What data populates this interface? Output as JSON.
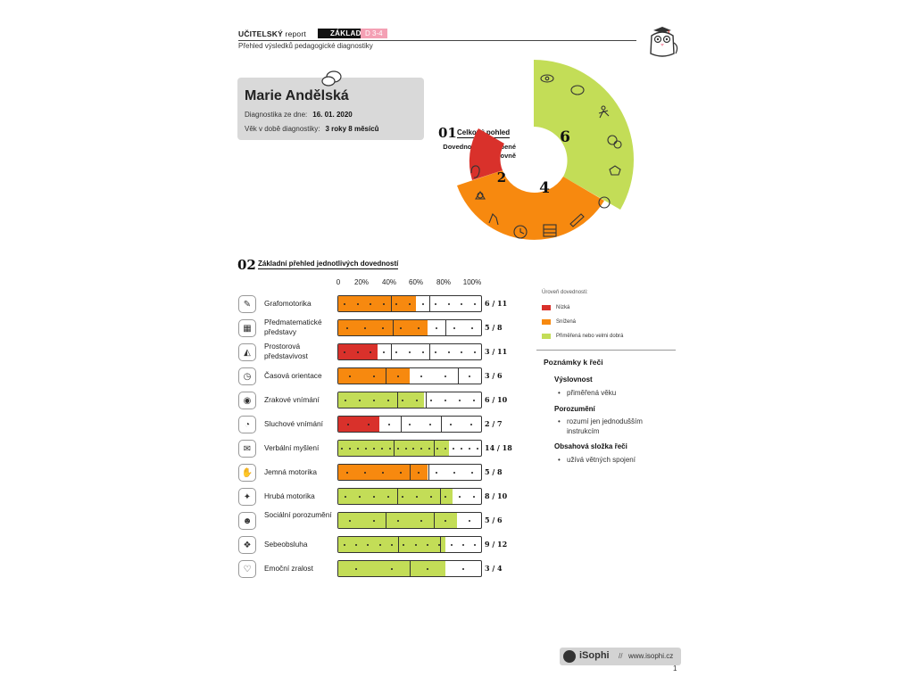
{
  "header": {
    "title_strong": "UČITELSKÝ",
    "title_light": "report",
    "badge": "ZÁKLADNÍ",
    "age_badge": "D 3-4",
    "subtitle": "Přehled výsledků pedagogické diagnostiky"
  },
  "profile": {
    "name": "Marie Andělská",
    "date_label": "Diagnostika ze dne:",
    "date_value": "16. 01. 2020",
    "age_label": "Věk v době diagnostiky:",
    "age_value": "3 roky 8 měsíců"
  },
  "section1": {
    "number": "01",
    "title": "Celkový pohled",
    "desc_line1": "Dovednosti seskupené",
    "desc_line2": "dle úrovně",
    "groups": [
      {
        "level": "low",
        "count": "2",
        "color": "#d9312b"
      },
      {
        "level": "reduced",
        "count": "4",
        "color": "#f7890f"
      },
      {
        "level": "good",
        "count": "6",
        "color": "#c3dd57"
      }
    ]
  },
  "section2": {
    "number": "02",
    "title": "Základní přehled jednotlivých dovedností",
    "scale": [
      "0",
      "20%",
      "40%",
      "60%",
      "80%",
      "100%"
    ]
  },
  "colors": {
    "low": "#d9312b",
    "reduced": "#f7890f",
    "good": "#c3dd57"
  },
  "skills": [
    {
      "label": "Grafomotorika",
      "score": "6 / 11",
      "achieved": 6,
      "total": 11,
      "level": "reduced",
      "icon": "pencil-icon",
      "seps": [
        0.37,
        0.64
      ]
    },
    {
      "label": "Předmatematické představy",
      "score": "5 / 8",
      "achieved": 5,
      "total": 8,
      "level": "reduced",
      "icon": "abacus-icon",
      "seps": [
        0.38,
        0.75
      ]
    },
    {
      "label": "Prostorová představivost",
      "score": "3 / 11",
      "achieved": 3,
      "total": 11,
      "level": "low",
      "icon": "shapes-icon",
      "seps": [
        0.37,
        0.64
      ]
    },
    {
      "label": "Časová orientace",
      "score": "3 / 6",
      "achieved": 3,
      "total": 6,
      "level": "reduced",
      "icon": "clock-icon",
      "seps": [
        0.33,
        0.84
      ]
    },
    {
      "label": "Zrakové vnímání",
      "score": "6 / 10",
      "achieved": 6,
      "total": 10,
      "level": "good",
      "icon": "eye-icon",
      "seps": [
        0.41,
        0.61
      ]
    },
    {
      "label": "Sluchové vnímání",
      "score": "2 / 7",
      "achieved": 2,
      "total": 7,
      "level": "low",
      "icon": "ear-icon",
      "seps": [
        0.44,
        0.72
      ]
    },
    {
      "label": "Verbální myšlení",
      "score": "14 / 18",
      "achieved": 14,
      "total": 18,
      "level": "good",
      "icon": "speech-icon",
      "seps": [
        0.39,
        0.67
      ]
    },
    {
      "label": "Jemná motorika",
      "score": "5 / 8",
      "achieved": 5,
      "total": 8,
      "level": "reduced",
      "icon": "hand-icon",
      "seps": [
        0.5,
        0.63
      ]
    },
    {
      "label": "Hrubá motorika",
      "score": "8 / 10",
      "achieved": 8,
      "total": 10,
      "level": "good",
      "icon": "runner-icon",
      "seps": [
        0.41,
        0.71
      ]
    },
    {
      "label": "Sociální porozumění",
      "score": "5 / 6",
      "achieved": 5,
      "total": 6,
      "level": "good",
      "icon": "people-icon",
      "seps": [
        0.33,
        0.67
      ]
    },
    {
      "label": "Sebeobsluha",
      "score": "9 / 12",
      "achieved": 9,
      "total": 12,
      "level": "good",
      "icon": "shirt-icon",
      "seps": [
        0.42,
        0.71
      ]
    },
    {
      "label": "Emoční zralost",
      "score": "3 / 4",
      "achieved": 3,
      "total": 4,
      "level": "good",
      "icon": "heart-head-icon",
      "seps": [
        0.5
      ]
    }
  ],
  "legend": {
    "title": "Úroveň dovednosti:",
    "items": [
      {
        "label": "Nízká",
        "color": "#d9312b"
      },
      {
        "label": "Snížená",
        "color": "#f7890f"
      },
      {
        "label": "Přiměřená nebo velmi dobrá",
        "color": "#c3dd57"
      }
    ]
  },
  "notes": {
    "title": "Poznámky k řeči",
    "groups": [
      {
        "heading": "Výslovnost",
        "items": [
          "přiměřená věku"
        ]
      },
      {
        "heading": "Porozumění",
        "items": [
          "rozumí jen jednodušším instrukcím"
        ]
      },
      {
        "heading": "Obsahová složka řeči",
        "items": [
          "užívá větných spojení"
        ]
      }
    ]
  },
  "footer": {
    "brand": "iSophi",
    "separator": "//",
    "url": "www.isophi.cz",
    "page": "1"
  }
}
